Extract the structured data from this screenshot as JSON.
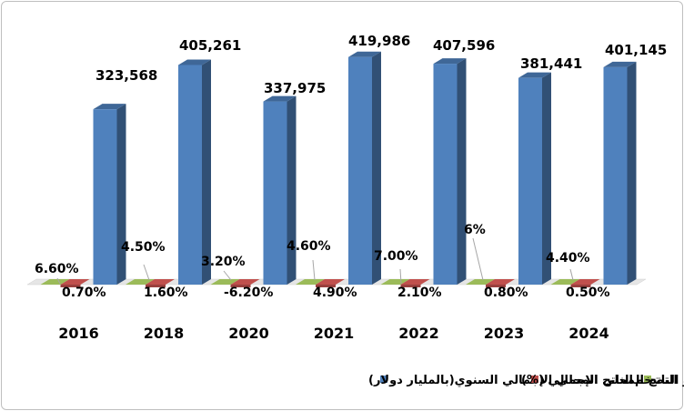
{
  "chart_data": {
    "type": "bar",
    "categories": [
      "2016",
      "2018",
      "2020",
      "2021",
      "2022",
      "2023",
      "2024"
    ],
    "series": [
      {
        "name": "الناتج المحلي الإجمالي السنوي(بالمليار دولار)",
        "values": [
          323568,
          405261,
          337975,
          419986,
          407596,
          381441,
          401145
        ],
        "labels": [
          "323,568",
          "405,261",
          "337,975",
          "419,986",
          "407,596",
          "381,441",
          "401,145"
        ],
        "color": "#4F81BD"
      },
      {
        "name": "نمو الناتج المحلي الإجمالي (%)",
        "values": [
          0.7,
          1.6,
          -6.2,
          4.9,
          2.1,
          0.8,
          0.5
        ],
        "labels": [
          "0.70%",
          "1.60%",
          "-6.20%",
          "4.90%",
          "2.10%",
          "0.80%",
          "0.50%"
        ],
        "color": "#C0504D"
      },
      {
        "name": "التضخم",
        "values": [
          6.6,
          4.5,
          3.2,
          4.6,
          7.0,
          6,
          4.4
        ],
        "labels": [
          "6.60%",
          "4.50%",
          "3.20%",
          "4.60%",
          "7.00%",
          "6%",
          "4.40%"
        ],
        "color": "#9BBB59"
      }
    ],
    "ylim": [
      0,
      450000
    ],
    "grid": false,
    "legend": "bottom",
    "style": "3d-column"
  }
}
